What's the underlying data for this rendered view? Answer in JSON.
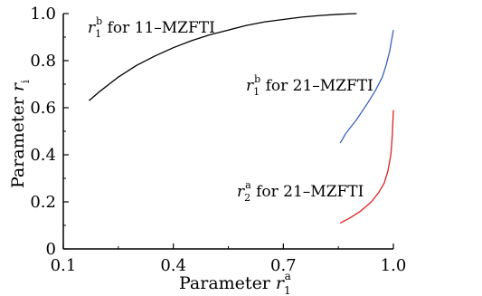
{
  "chart_data": {
    "type": "line",
    "xlabel": {
      "text": "Parameter",
      "var": "r",
      "sup": "a",
      "sub": "1"
    },
    "ylabel": {
      "text": "Parameter",
      "var": "r",
      "sub": "i"
    },
    "xlim": [
      0.1,
      1.0
    ],
    "ylim": [
      0,
      1.0
    ],
    "xticks": [
      "0.1",
      "0.4",
      "0.7",
      "1.0"
    ],
    "xtick_values": [
      0.1,
      0.4,
      0.7,
      1.0
    ],
    "yticks": [
      "0",
      "0.2",
      "0.4",
      "0.6",
      "0.8",
      "1.0"
    ],
    "ytick_values": [
      0,
      0.2,
      0.4,
      0.6,
      0.8,
      1.0
    ],
    "grid": false,
    "series": [
      {
        "color": "#000000",
        "x": [
          0.17,
          0.2,
          0.25,
          0.3,
          0.35,
          0.4,
          0.45,
          0.5,
          0.55,
          0.6,
          0.65,
          0.7,
          0.75,
          0.8,
          0.85,
          0.9
        ],
        "y": [
          0.63,
          0.67,
          0.73,
          0.78,
          0.82,
          0.855,
          0.885,
          0.91,
          0.93,
          0.95,
          0.965,
          0.975,
          0.985,
          0.992,
          0.997,
          1.0
        ]
      },
      {
        "color": "#3a63c0",
        "x": [
          0.855,
          0.87,
          0.9,
          0.93,
          0.95,
          0.97,
          0.98,
          0.99,
          1.0
        ],
        "y": [
          0.45,
          0.49,
          0.55,
          0.62,
          0.67,
          0.73,
          0.78,
          0.84,
          0.93
        ]
      },
      {
        "color": "#e02020",
        "x": [
          0.855,
          0.88,
          0.91,
          0.94,
          0.96,
          0.975,
          0.985,
          0.993,
          0.997,
          1.0
        ],
        "y": [
          0.11,
          0.13,
          0.16,
          0.2,
          0.24,
          0.28,
          0.33,
          0.4,
          0.48,
          0.59
        ]
      }
    ],
    "annotations": [
      {
        "var": "r",
        "sub": "1",
        "sup": "b",
        "text": " for 11–MZFTI"
      },
      {
        "var": "r",
        "sub": "1",
        "sup": "b",
        "text": " for 21–MZFTI"
      },
      {
        "var": "r",
        "sub": "2",
        "sup": "a",
        "text": " for 21–MZFTI"
      }
    ]
  }
}
